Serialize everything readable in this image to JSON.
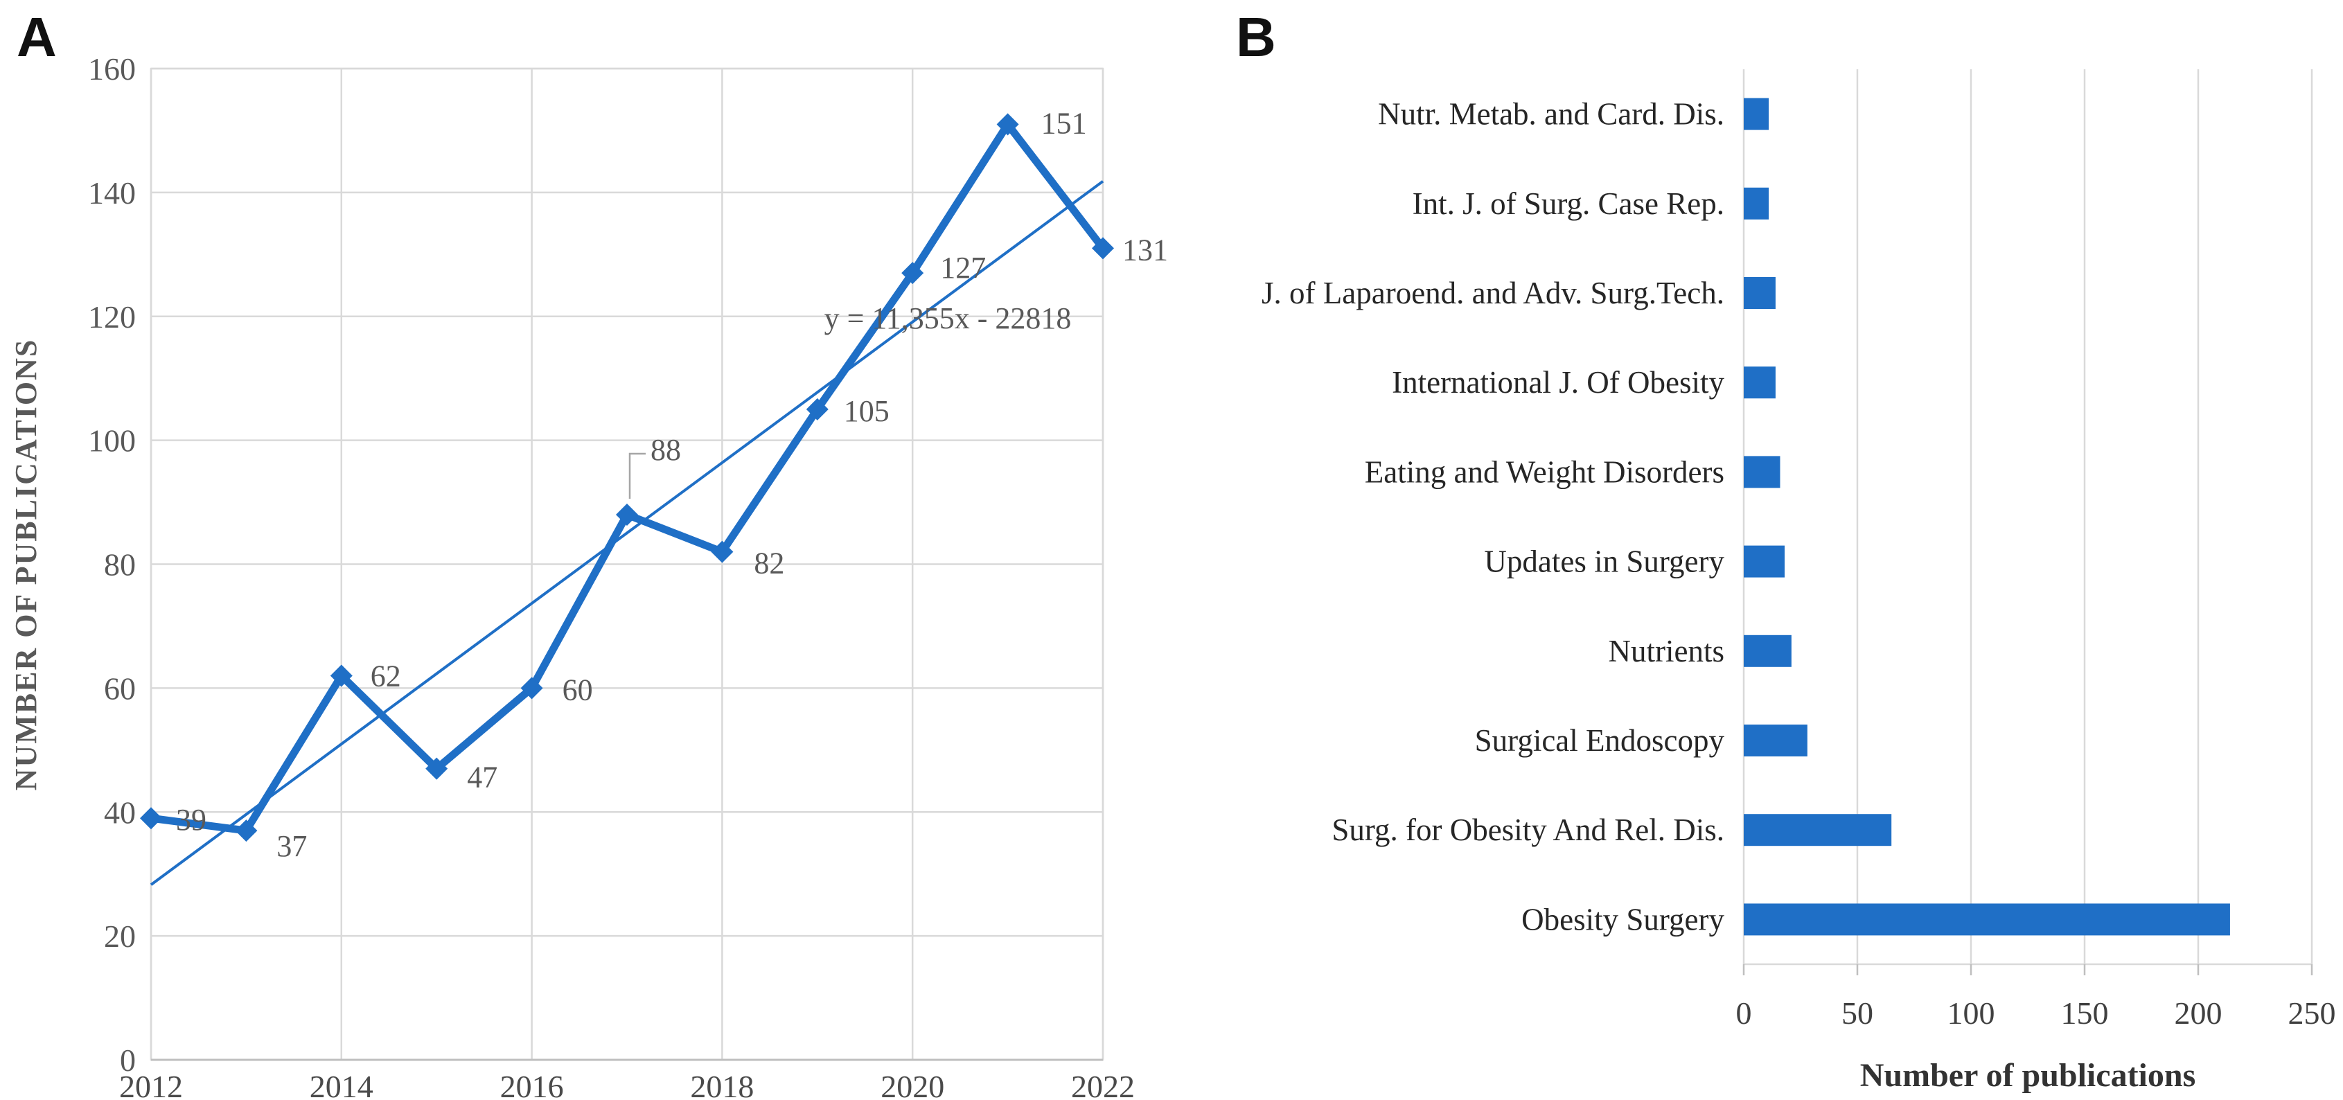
{
  "panels": {
    "a_label": "A",
    "b_label": "B"
  },
  "colors": {
    "series_blue": "#1f6fc6",
    "gridline": "#d9d9d9",
    "axis_line": "#bfbfbf",
    "label_gray": "#595959",
    "leader_gray": "#a6a6a6"
  },
  "chart_data": [
    {
      "id": "publications-per-year",
      "type": "line",
      "x": [
        2012,
        2013,
        2014,
        2015,
        2016,
        2017,
        2018,
        2019,
        2020,
        2021,
        2022
      ],
      "values": [
        39,
        37,
        62,
        47,
        60,
        88,
        82,
        105,
        127,
        151,
        131
      ],
      "xticks": [
        2012,
        2014,
        2016,
        2018,
        2020,
        2022
      ],
      "yticks": [
        0,
        20,
        40,
        60,
        80,
        100,
        120,
        140,
        160
      ],
      "ylim": [
        0,
        160
      ],
      "xlim": [
        2012,
        2022
      ],
      "ylabel": "NUMBER OF PUBLICATIONS",
      "grid": true,
      "legend": "none",
      "trendline": {
        "equation_label": "y = 11,355x - 22818",
        "slope": 11.355,
        "intercept": -22818
      }
    },
    {
      "id": "publications-per-journal",
      "type": "bar",
      "orientation": "horizontal",
      "categories": [
        "Nutr. Metab. and Card. Dis.",
        "Int. J. of Surg. Case Rep.",
        "J. of Laparoend. and Adv. Surg.Tech.",
        "International J. Of Obesity",
        "Eating and Weight Disorders",
        "Updates in Surgery",
        "Nutrients",
        "Surgical Endoscopy",
        "Surg. for Obesity And Rel. Dis.",
        "Obesity Surgery"
      ],
      "values": [
        11,
        11,
        14,
        14,
        16,
        18,
        21,
        28,
        65,
        214
      ],
      "xticks": [
        0,
        50,
        100,
        150,
        200,
        250
      ],
      "xlim": [
        0,
        250
      ],
      "xlabel": "Number of publications",
      "grid": true,
      "legend": "none"
    }
  ]
}
